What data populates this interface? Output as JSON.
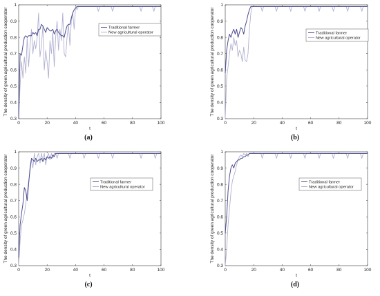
{
  "chart_data": [
    {
      "type": "line",
      "panel_label": "(a)",
      "xlabel": "t",
      "ylabel": "The density of green agricultural production cooperator",
      "xlim": [
        0,
        100
      ],
      "ylim": [
        0.3,
        1.0
      ],
      "x_ticks": [
        "0",
        "20",
        "40",
        "60",
        "80",
        "100"
      ],
      "y_ticks": [
        "0.3",
        "0.4",
        "0.5",
        "0.6",
        "0.7",
        "0.8",
        "0.9",
        "1"
      ],
      "legend_position": "upper-right",
      "series": [
        {
          "name": "Traditional farmer",
          "color": "#4b4b8f",
          "x": [
            0,
            1,
            2,
            3,
            4,
            5,
            6,
            7,
            8,
            9,
            10,
            11,
            12,
            13,
            14,
            15,
            16,
            17,
            18,
            19,
            20,
            21,
            22,
            23,
            24,
            25,
            26,
            27,
            28,
            29,
            30,
            31,
            32,
            33,
            34,
            35,
            36,
            37,
            38,
            39,
            40,
            41,
            42,
            43,
            44,
            45,
            50,
            60,
            70,
            80,
            90,
            100
          ],
          "y": [
            0.3,
            0.7,
            0.69,
            0.75,
            0.8,
            0.81,
            0.8,
            0.81,
            0.81,
            0.81,
            0.83,
            0.82,
            0.83,
            0.81,
            0.85,
            0.85,
            0.88,
            0.87,
            0.85,
            0.83,
            0.86,
            0.85,
            0.84,
            0.84,
            0.85,
            0.82,
            0.84,
            0.85,
            0.83,
            0.82,
            0.81,
            0.81,
            0.8,
            0.84,
            0.87,
            0.88,
            0.88,
            0.92,
            0.95,
            0.97,
            0.98,
            0.99,
            0.99,
            0.99,
            0.99,
            0.99,
            0.99,
            0.99,
            0.99,
            0.99,
            0.99,
            0.99
          ]
        },
        {
          "name": "New agricultural operator",
          "color": "#b0b0d0",
          "x": [
            0,
            1,
            2,
            3,
            4,
            5,
            6,
            7,
            8,
            9,
            10,
            11,
            12,
            13,
            14,
            15,
            16,
            17,
            18,
            19,
            20,
            21,
            22,
            23,
            24,
            25,
            26,
            27,
            28,
            29,
            30,
            31,
            32,
            33,
            34,
            35,
            36,
            37,
            38,
            39,
            40,
            41,
            42,
            45,
            50,
            55,
            56,
            57,
            60,
            65,
            66,
            67,
            70,
            75,
            80,
            85,
            86,
            87,
            90,
            94,
            95,
            96,
            100
          ],
          "y": [
            0.3,
            0.5,
            0.65,
            0.55,
            0.68,
            0.58,
            0.8,
            0.62,
            0.75,
            0.85,
            0.7,
            0.78,
            0.73,
            0.8,
            0.95,
            0.68,
            0.75,
            0.87,
            0.6,
            0.72,
            0.65,
            0.55,
            0.78,
            0.7,
            0.83,
            0.62,
            0.8,
            0.9,
            0.72,
            0.85,
            0.78,
            0.95,
            0.7,
            0.68,
            0.8,
            0.88,
            0.75,
            0.9,
            0.95,
            0.85,
            0.99,
            0.97,
            0.99,
            0.99,
            0.99,
            0.99,
            0.96,
            0.99,
            0.99,
            0.99,
            0.96,
            0.99,
            0.99,
            0.99,
            0.99,
            0.99,
            0.96,
            0.99,
            0.99,
            0.99,
            0.96,
            0.99,
            0.99
          ]
        }
      ]
    },
    {
      "type": "line",
      "panel_label": "(b)",
      "xlabel": "t",
      "ylabel": "The density of green agricultural production cooperator",
      "xlim": [
        0,
        100
      ],
      "ylim": [
        0.3,
        1.0
      ],
      "x_ticks": [
        "0",
        "20",
        "40",
        "60",
        "80",
        "100"
      ],
      "y_ticks": [
        "0.3",
        "0.4",
        "0.5",
        "0.6",
        "0.7",
        "0.8",
        "0.9",
        "1"
      ],
      "legend_position": "upper-right",
      "series": [
        {
          "name": "Traditional farmer",
          "color": "#4b4b8f",
          "x": [
            0,
            1,
            2,
            3,
            4,
            5,
            6,
            7,
            8,
            9,
            10,
            11,
            12,
            13,
            14,
            15,
            16,
            17,
            18,
            19,
            20,
            25,
            30,
            40,
            50,
            60,
            70,
            80,
            90,
            100
          ],
          "y": [
            0.58,
            0.72,
            0.78,
            0.82,
            0.8,
            0.83,
            0.85,
            0.82,
            0.85,
            0.8,
            0.83,
            0.86,
            0.85,
            0.82,
            0.87,
            0.9,
            0.94,
            0.97,
            0.99,
            0.99,
            0.99,
            0.99,
            0.99,
            0.99,
            0.99,
            0.99,
            0.99,
            0.99,
            0.99,
            0.99
          ]
        },
        {
          "name": "New agricultural operator",
          "color": "#b0b0d0",
          "x": [
            0,
            1,
            2,
            3,
            4,
            5,
            6,
            7,
            8,
            9,
            10,
            11,
            12,
            13,
            14,
            15,
            16,
            17,
            18,
            19,
            20,
            25,
            26,
            27,
            30,
            35,
            36,
            37,
            40,
            45,
            46,
            47,
            50,
            55,
            56,
            57,
            60,
            65,
            66,
            67,
            70,
            75,
            76,
            77,
            80,
            85,
            86,
            87,
            90,
            95,
            96,
            97,
            100
          ],
          "y": [
            0.3,
            0.55,
            0.62,
            0.7,
            0.76,
            0.72,
            0.8,
            0.75,
            0.78,
            0.68,
            0.72,
            0.7,
            0.65,
            0.74,
            0.66,
            0.65,
            0.7,
            0.85,
            0.95,
            0.99,
            0.99,
            0.99,
            0.96,
            0.99,
            0.99,
            0.99,
            0.96,
            0.99,
            0.99,
            0.99,
            0.96,
            0.99,
            0.99,
            0.99,
            0.96,
            0.99,
            0.99,
            0.99,
            0.96,
            0.99,
            0.99,
            0.99,
            0.96,
            0.99,
            0.99,
            0.99,
            0.96,
            0.99,
            0.99,
            0.99,
            0.96,
            0.99,
            0.99
          ]
        }
      ]
    },
    {
      "type": "line",
      "panel_label": "(c)",
      "xlabel": "t",
      "ylabel": "The density of green agricultural production cooperator",
      "xlim": [
        0,
        100
      ],
      "ylim": [
        0.3,
        1.0
      ],
      "x_ticks": [
        "0",
        "20",
        "40",
        "60",
        "80",
        "100"
      ],
      "y_ticks": [
        "0.3",
        "0.4",
        "0.5",
        "0.6",
        "0.7",
        "0.8",
        "0.9",
        "1"
      ],
      "legend_position": "center-right",
      "series": [
        {
          "name": "Traditional farmer",
          "color": "#4b4b8f",
          "x": [
            0,
            1,
            2,
            3,
            4,
            5,
            6,
            7,
            8,
            9,
            10,
            11,
            12,
            13,
            14,
            15,
            16,
            17,
            18,
            19,
            20,
            21,
            22,
            23,
            24,
            25,
            26,
            27,
            28,
            30,
            40,
            50,
            60,
            70,
            80,
            90,
            100
          ],
          "y": [
            0.35,
            0.55,
            0.62,
            0.68,
            0.78,
            0.76,
            0.7,
            0.8,
            0.9,
            0.96,
            0.95,
            0.94,
            0.96,
            0.94,
            0.95,
            0.95,
            0.96,
            0.94,
            0.96,
            0.95,
            0.97,
            0.96,
            0.97,
            0.96,
            0.98,
            0.97,
            0.99,
            0.99,
            0.99,
            0.99,
            0.99,
            0.99,
            0.99,
            0.99,
            0.99,
            0.99,
            0.99
          ]
        },
        {
          "name": "New agricultural operator",
          "color": "#b0b0d0",
          "x": [
            0,
            1,
            2,
            3,
            4,
            5,
            6,
            7,
            8,
            9,
            10,
            11,
            12,
            13,
            14,
            15,
            16,
            17,
            18,
            19,
            20,
            21,
            22,
            23,
            24,
            25,
            26,
            27,
            28,
            30,
            35,
            36,
            37,
            40,
            45,
            46,
            47,
            50,
            55,
            56,
            57,
            60,
            65,
            66,
            67,
            70,
            75,
            80,
            85,
            86,
            87,
            90,
            95,
            96,
            97,
            100
          ],
          "y": [
            0.3,
            0.45,
            0.55,
            0.58,
            0.62,
            0.68,
            0.75,
            0.82,
            0.88,
            0.95,
            0.9,
            0.99,
            0.92,
            0.97,
            0.99,
            0.93,
            0.99,
            0.95,
            0.99,
            0.92,
            0.97,
            0.99,
            0.95,
            0.99,
            0.96,
            0.99,
            0.99,
            0.96,
            0.99,
            0.99,
            0.99,
            0.96,
            0.99,
            0.99,
            0.99,
            0.96,
            0.99,
            0.99,
            0.99,
            0.96,
            0.99,
            0.99,
            0.99,
            0.96,
            0.99,
            0.99,
            0.99,
            0.99,
            0.99,
            0.96,
            0.99,
            0.99,
            0.99,
            0.96,
            0.99,
            0.99
          ]
        }
      ]
    },
    {
      "type": "line",
      "panel_label": "(d)",
      "xlabel": "t",
      "ylabel": "The density of green agricultural production cooperator",
      "xlim": [
        0,
        100
      ],
      "ylim": [
        0.3,
        1.0
      ],
      "x_ticks": [
        "0",
        "20",
        "40",
        "60",
        "80",
        "100"
      ],
      "y_ticks": [
        "0.3",
        "0.4",
        "0.5",
        "0.6",
        "0.7",
        "0.8",
        "0.9",
        "1"
      ],
      "legend_position": "center-right",
      "series": [
        {
          "name": "Traditional farmer",
          "color": "#4b4b8f",
          "x": [
            0,
            1,
            2,
            3,
            4,
            5,
            6,
            7,
            8,
            9,
            10,
            11,
            12,
            13,
            14,
            15,
            16,
            17,
            18,
            20,
            30,
            40,
            50,
            60,
            70,
            80,
            90,
            100
          ],
          "y": [
            0.5,
            0.6,
            0.76,
            0.85,
            0.9,
            0.92,
            0.9,
            0.93,
            0.94,
            0.95,
            0.95,
            0.96,
            0.96,
            0.97,
            0.97,
            0.98,
            0.98,
            0.99,
            0.99,
            0.99,
            0.99,
            0.99,
            0.99,
            0.99,
            0.99,
            0.99,
            0.99,
            0.99
          ]
        },
        {
          "name": "New agricultural operator",
          "color": "#b0b0d0",
          "x": [
            0,
            1,
            2,
            3,
            4,
            5,
            6,
            7,
            8,
            9,
            10,
            11,
            12,
            13,
            14,
            15,
            16,
            17,
            18,
            20,
            25,
            26,
            27,
            30,
            35,
            36,
            37,
            40,
            45,
            46,
            47,
            50,
            55,
            56,
            57,
            60,
            65,
            66,
            67,
            70,
            75,
            76,
            77,
            80,
            85,
            86,
            87,
            90,
            95,
            96,
            97,
            100
          ],
          "y": [
            0.3,
            0.4,
            0.55,
            0.65,
            0.75,
            0.82,
            0.85,
            0.88,
            0.92,
            0.95,
            0.97,
            0.98,
            0.97,
            0.99,
            0.98,
            0.99,
            0.97,
            0.99,
            0.99,
            0.99,
            0.99,
            0.96,
            0.99,
            0.99,
            0.99,
            0.96,
            0.99,
            0.99,
            0.99,
            0.96,
            0.99,
            0.99,
            0.99,
            0.96,
            0.99,
            0.99,
            0.99,
            0.96,
            0.99,
            0.99,
            0.99,
            0.96,
            0.99,
            0.99,
            0.99,
            0.96,
            0.99,
            0.99,
            0.99,
            0.96,
            0.99,
            0.99
          ]
        }
      ]
    }
  ]
}
